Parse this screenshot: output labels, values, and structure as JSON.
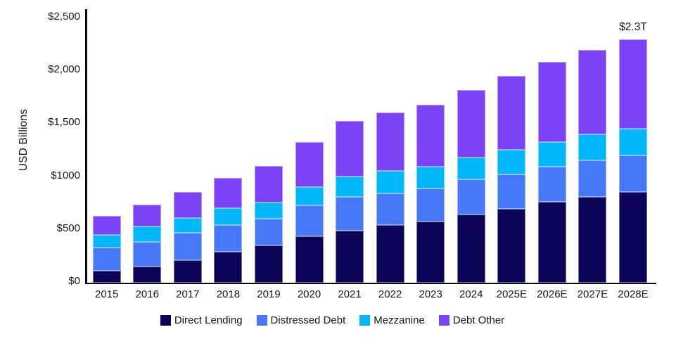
{
  "y_axis": {
    "title": "USD Billions",
    "tick_labels": [
      "$0",
      "$500",
      "$1000",
      "$1,500",
      "$2,000",
      "$2,500"
    ],
    "tick_values": [
      0,
      500,
      1000,
      1500,
      2000,
      2500
    ]
  },
  "annotation": {
    "text": "$2.3T",
    "target_category": "2028E"
  },
  "colors": {
    "direct_lending": "#0a0357",
    "distressed_debt": "#4678f8",
    "mezzanine": "#00b7fa",
    "debt_other": "#7b42f6",
    "axis": "#0b0b0e",
    "text": "#15151f"
  },
  "legend": {
    "items": [
      {
        "label": "Direct Lending",
        "color": "#0a0357"
      },
      {
        "label": "Distressed Debt",
        "color": "#4678f8"
      },
      {
        "label": "Mezzanine",
        "color": "#00b7fa"
      },
      {
        "label": "Debt Other",
        "color": "#7b42f6"
      }
    ]
  },
  "chart_data": {
    "type": "bar",
    "stacked": true,
    "title": "",
    "xlabel": "",
    "ylabel": "USD Billions",
    "ylim": [
      0,
      2500
    ],
    "grid": false,
    "legend_position": "bottom",
    "annotations": [
      {
        "text": "$2.3T",
        "category": "2028E"
      }
    ],
    "categories": [
      "2015",
      "2016",
      "2017",
      "2018",
      "2019",
      "2020",
      "2021",
      "2022",
      "2023",
      "2024",
      "2025E",
      "2026E",
      "2027E",
      "2028E"
    ],
    "series": [
      {
        "name": "Direct Lending",
        "color": "#0a0357",
        "values": [
          115,
          155,
          215,
          295,
          355,
          440,
          495,
          545,
          580,
          645,
          695,
          765,
          810,
          855
        ]
      },
      {
        "name": "Distressed Debt",
        "color": "#4678f8",
        "values": [
          220,
          230,
          255,
          250,
          250,
          290,
          315,
          300,
          310,
          330,
          330,
          330,
          350,
          350
        ]
      },
      {
        "name": "Mezzanine",
        "color": "#00b7fa",
        "values": [
          120,
          150,
          145,
          160,
          155,
          175,
          195,
          210,
          210,
          210,
          235,
          235,
          245,
          250
        ]
      },
      {
        "name": "Debt Other",
        "color": "#7b42f6",
        "values": [
          180,
          205,
          245,
          285,
          345,
          425,
          525,
          555,
          580,
          635,
          695,
          755,
          795,
          845
        ]
      }
    ],
    "totals": [
      635,
      740,
      860,
      990,
      1105,
      1330,
      1530,
      1610,
      1680,
      1820,
      1955,
      2085,
      2200,
      2300
    ]
  }
}
